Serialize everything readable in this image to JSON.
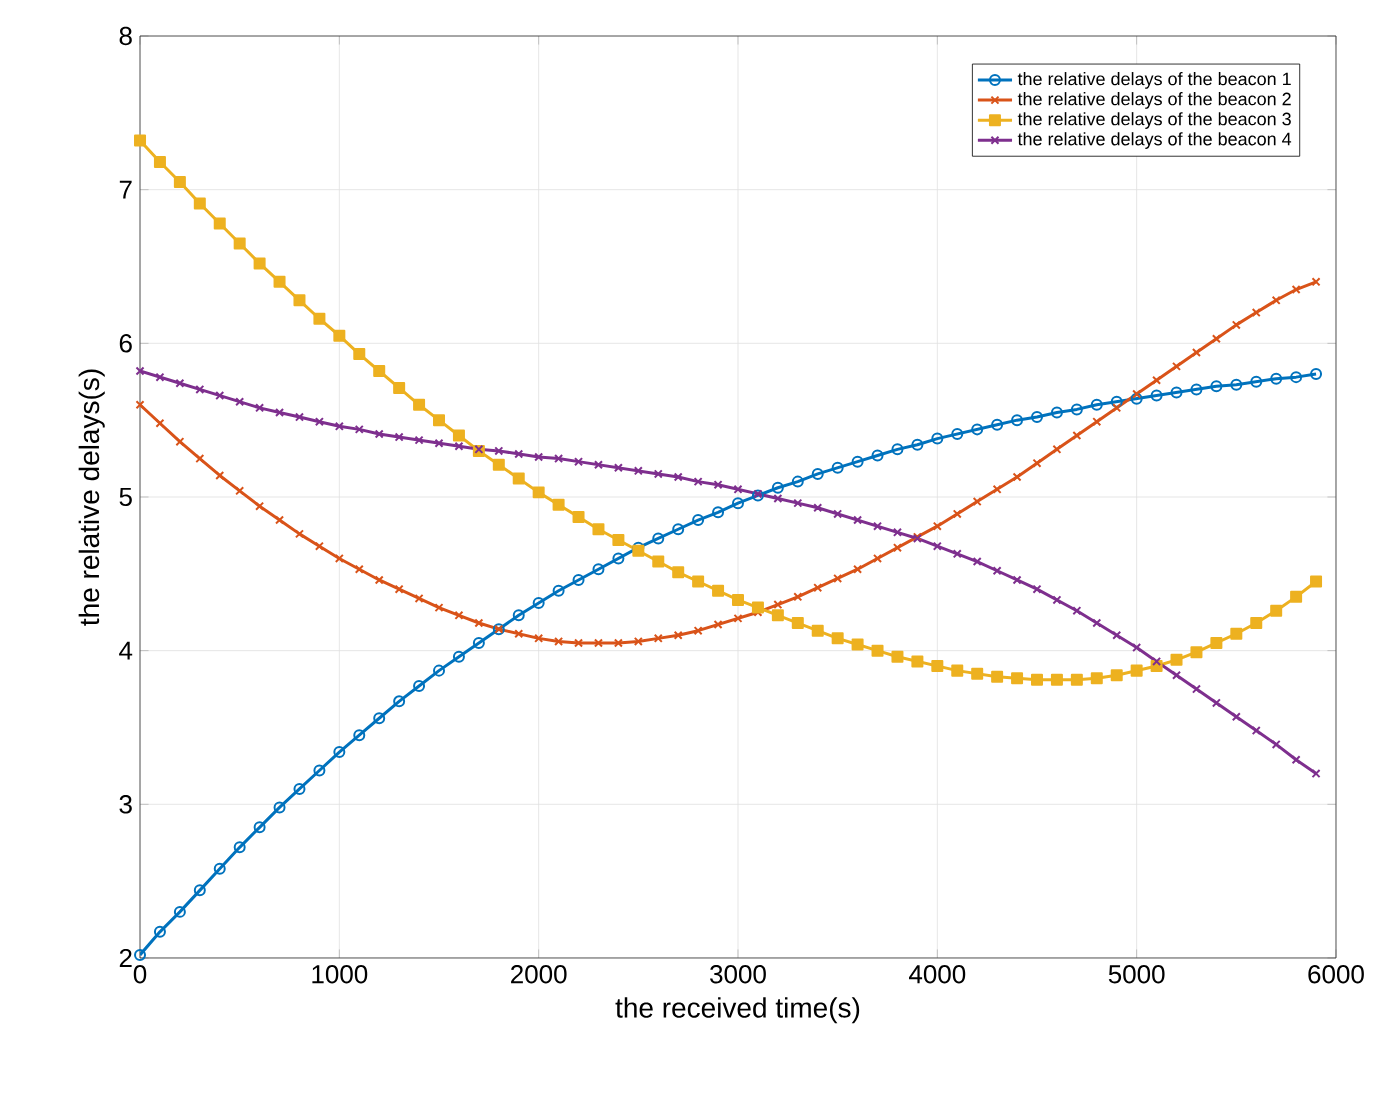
{
  "chart_data": {
    "type": "line",
    "xlabel": "the received time(s)",
    "ylabel": "the relative delays(s)",
    "xlim": [
      0,
      6000
    ],
    "ylim": [
      2,
      8
    ],
    "xticks": [
      0,
      1000,
      2000,
      3000,
      4000,
      5000,
      6000
    ],
    "yticks": [
      2,
      3,
      4,
      5,
      6,
      7,
      8
    ],
    "grid": true,
    "legend": "top right",
    "line_style": "solid",
    "x": [
      0,
      100,
      200,
      300,
      400,
      500,
      600,
      700,
      800,
      900,
      1000,
      1100,
      1200,
      1300,
      1400,
      1500,
      1600,
      1700,
      1800,
      1900,
      2000,
      2100,
      2200,
      2300,
      2400,
      2500,
      2600,
      2700,
      2800,
      2900,
      3000,
      3100,
      3200,
      3300,
      3400,
      3500,
      3600,
      3700,
      3800,
      3900,
      4000,
      4100,
      4200,
      4300,
      4400,
      4500,
      4600,
      4700,
      4800,
      4900,
      5000,
      5100,
      5200,
      5300,
      5400,
      5500,
      5600,
      5700,
      5800,
      5900
    ],
    "series": [
      {
        "name": "the relative delays of the beacon 1",
        "color": "#0072bd",
        "marker": "circle",
        "values": [
          2.02,
          2.17,
          2.3,
          2.44,
          2.58,
          2.72,
          2.85,
          2.98,
          3.1,
          3.22,
          3.34,
          3.45,
          3.56,
          3.67,
          3.77,
          3.87,
          3.96,
          4.05,
          4.14,
          4.23,
          4.31,
          4.39,
          4.46,
          4.53,
          4.6,
          4.67,
          4.73,
          4.79,
          4.85,
          4.9,
          4.96,
          5.01,
          5.06,
          5.1,
          5.15,
          5.19,
          5.23,
          5.27,
          5.31,
          5.34,
          5.38,
          5.41,
          5.44,
          5.47,
          5.5,
          5.52,
          5.55,
          5.57,
          5.6,
          5.62,
          5.64,
          5.66,
          5.68,
          5.7,
          5.72,
          5.73,
          5.75,
          5.77,
          5.78,
          5.8
        ]
      },
      {
        "name": "the relative delays of the beacon 2",
        "color": "#d95319",
        "marker": "cross",
        "values": [
          5.6,
          5.48,
          5.36,
          5.25,
          5.14,
          5.04,
          4.94,
          4.85,
          4.76,
          4.68,
          4.6,
          4.53,
          4.46,
          4.4,
          4.34,
          4.28,
          4.23,
          4.18,
          4.14,
          4.11,
          4.08,
          4.06,
          4.05,
          4.05,
          4.05,
          4.06,
          4.08,
          4.1,
          4.13,
          4.17,
          4.21,
          4.25,
          4.3,
          4.35,
          4.41,
          4.47,
          4.53,
          4.6,
          4.67,
          4.74,
          4.81,
          4.89,
          4.97,
          5.05,
          5.13,
          5.22,
          5.31,
          5.4,
          5.49,
          5.58,
          5.67,
          5.76,
          5.85,
          5.94,
          6.03,
          6.12,
          6.2,
          6.28,
          6.35,
          6.4
        ]
      },
      {
        "name": "the relative delays of the beacon 3",
        "color": "#edb120",
        "marker": "square",
        "values": [
          7.32,
          7.18,
          7.05,
          6.91,
          6.78,
          6.65,
          6.52,
          6.4,
          6.28,
          6.16,
          6.05,
          5.93,
          5.82,
          5.71,
          5.6,
          5.5,
          5.4,
          5.3,
          5.21,
          5.12,
          5.03,
          4.95,
          4.87,
          4.79,
          4.72,
          4.65,
          4.58,
          4.51,
          4.45,
          4.39,
          4.33,
          4.28,
          4.23,
          4.18,
          4.13,
          4.08,
          4.04,
          4.0,
          3.96,
          3.93,
          3.9,
          3.87,
          3.85,
          3.83,
          3.82,
          3.81,
          3.81,
          3.81,
          3.82,
          3.84,
          3.87,
          3.9,
          3.94,
          3.99,
          4.05,
          4.11,
          4.18,
          4.26,
          4.35,
          4.45
        ]
      },
      {
        "name": "the relative delays of the beacon 4",
        "color": "#7e2f8e",
        "marker": "cross",
        "values": [
          5.82,
          5.78,
          5.74,
          5.7,
          5.66,
          5.62,
          5.58,
          5.55,
          5.52,
          5.49,
          5.46,
          5.44,
          5.41,
          5.39,
          5.37,
          5.35,
          5.33,
          5.31,
          5.3,
          5.28,
          5.26,
          5.25,
          5.23,
          5.21,
          5.19,
          5.17,
          5.15,
          5.13,
          5.1,
          5.08,
          5.05,
          5.02,
          4.99,
          4.96,
          4.93,
          4.89,
          4.85,
          4.81,
          4.77,
          4.73,
          4.68,
          4.63,
          4.58,
          4.52,
          4.46,
          4.4,
          4.33,
          4.26,
          4.18,
          4.1,
          4.02,
          3.93,
          3.84,
          3.75,
          3.66,
          3.57,
          3.48,
          3.39,
          3.29,
          3.2
        ]
      }
    ]
  }
}
